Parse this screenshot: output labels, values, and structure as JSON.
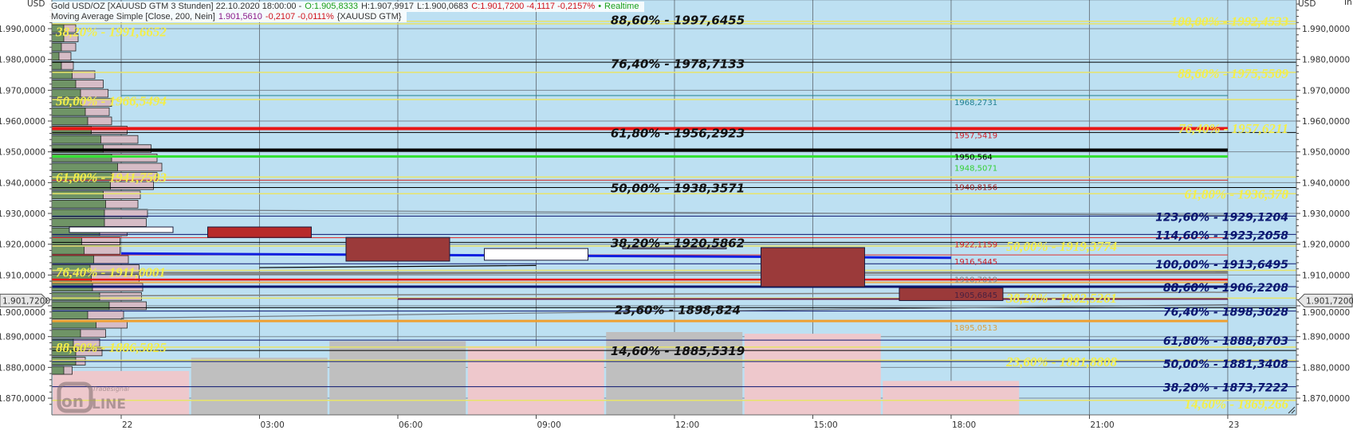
{
  "header": {
    "line1": {
      "instrument": "Gold USD/OZ [XAUUSD GTM 3 Stunden] 22.10.2020 18:00:00 -",
      "open": "O:1.905,8333",
      "high": "H:1.907,9917",
      "low": "L:1.900,0683",
      "close": "C:1.901,7200 -4,1117 -0,2157%",
      "realtime": "Realtime"
    },
    "line2": {
      "indicator": "Moving Average Simple [Close, 200, Nein]",
      "value": "1.901,5610",
      "change": "-0,2107 -0,0111%",
      "symbol": "{XAUUSD GTM}"
    }
  },
  "axis": {
    "unit_left": "USD",
    "unit_right": "USD",
    "right_corner": "In",
    "current_price": "1.901,7200",
    "y_ticks": [
      "1.990,0000",
      "1.980,0000",
      "1.970,0000",
      "1.960,0000",
      "1.950,0000",
      "1.940,0000",
      "1.930,0000",
      "1.920,0000",
      "1.910,0000",
      "1.900,0000",
      "1.890,0000",
      "1.880,0000",
      "1.870,0000"
    ],
    "x_ticks": [
      "22",
      "03:00",
      "06:00",
      "09:00",
      "12:00",
      "15:00",
      "18:00",
      "21:00",
      "23"
    ]
  },
  "logo": {
    "small": "Tradesignal",
    "big": "online"
  },
  "colors": {
    "background": "#bde0f2",
    "down_candle": "#9b3a3a",
    "down_candle_bright": "#b82a2a",
    "up_candle": "#ffffff",
    "volume_pink": "#eec8cc",
    "volume_gray": "#bfbfbf",
    "profile_green": "#6f9466",
    "profile_pink": "#d6bcc6",
    "fib_yellow": "#f3ee4a",
    "fib_navy": "#0b1670"
  },
  "chart_data": {
    "type": "candlestick",
    "interval": "3 Stunden",
    "ylim": [
      1866,
      2000
    ],
    "y_grid": true,
    "x_grid": true,
    "x_range_hours_from_22_00": [
      -1.5,
      25.5
    ],
    "candles": [
      {
        "time": "22 00:00",
        "hour": 0,
        "open": 1923.8,
        "close": 1925.6,
        "color": "#ffffff",
        "volume_rel": 0.53,
        "volume_color": "#eec8cc"
      },
      {
        "time": "03:00",
        "hour": 3,
        "open": 1925.6,
        "close": 1922.2,
        "color": "#b82a2a",
        "volume_rel": 0.69,
        "volume_color": "#bfbfbf"
      },
      {
        "time": "06:00",
        "hour": 6,
        "open": 1922.2,
        "close": 1914.5,
        "color": "#9b3a3a",
        "volume_rel": 0.89,
        "volume_color": "#bfbfbf"
      },
      {
        "time": "09:00",
        "hour": 9,
        "open": 1914.8,
        "close": 1918.6,
        "color": "#ffffff",
        "volume_rel": 0.83,
        "volume_color": "#eec8cc"
      },
      {
        "time": "12:00",
        "hour": 12,
        "open": 1918.7,
        "close": 1918.9,
        "color": "#ffffff",
        "volume_rel": 1.0,
        "volume_color": "#bfbfbf"
      },
      {
        "time": "15:00",
        "hour": 15,
        "open": 1918.9,
        "close": 1906.2,
        "color": "#9b3a3a",
        "volume_rel": 0.98,
        "volume_color": "#eec8cc"
      },
      {
        "time": "18:00",
        "hour": 18,
        "open": 1905.8,
        "close": 1901.7,
        "color": "#9b3a3a",
        "volume_rel": 0.41,
        "volume_color": "#eec8cc"
      }
    ],
    "volume_profile": [
      {
        "price": 1990,
        "up": 0.1,
        "total": 0.2
      },
      {
        "price": 1987,
        "up": 0.1,
        "total": 0.22
      },
      {
        "price": 1984,
        "up": 0.08,
        "total": 0.2
      },
      {
        "price": 1981,
        "up": 0.06,
        "total": 0.16
      },
      {
        "price": 1978,
        "up": 0.08,
        "total": 0.18
      },
      {
        "price": 1975,
        "up": 0.17,
        "total": 0.36
      },
      {
        "price": 1972,
        "up": 0.2,
        "total": 0.43
      },
      {
        "price": 1969,
        "up": 0.24,
        "total": 0.47
      },
      {
        "price": 1966,
        "up": 0.25,
        "total": 0.5
      },
      {
        "price": 1963,
        "up": 0.28,
        "total": 0.48
      },
      {
        "price": 1960,
        "up": 0.3,
        "total": 0.5
      },
      {
        "price": 1957,
        "up": 0.33,
        "total": 0.63
      },
      {
        "price": 1954,
        "up": 0.41,
        "total": 0.72
      },
      {
        "price": 1951,
        "up": 0.43,
        "total": 0.83
      },
      {
        "price": 1948,
        "up": 0.5,
        "total": 0.88
      },
      {
        "price": 1945,
        "up": 0.55,
        "total": 0.92
      },
      {
        "price": 1942,
        "up": 0.5,
        "total": 0.88
      },
      {
        "price": 1939,
        "up": 0.49,
        "total": 0.85
      },
      {
        "price": 1936,
        "up": 0.43,
        "total": 0.74
      },
      {
        "price": 1933,
        "up": 0.45,
        "total": 0.72
      },
      {
        "price": 1930,
        "up": 0.44,
        "total": 0.8
      },
      {
        "price": 1927,
        "up": 0.44,
        "total": 0.79
      },
      {
        "price": 1924,
        "up": 0.4,
        "total": 0.63
      },
      {
        "price": 1921,
        "up": 0.25,
        "total": 0.57
      },
      {
        "price": 1918,
        "up": 0.27,
        "total": 0.57
      },
      {
        "price": 1915,
        "up": 0.35,
        "total": 0.64
      },
      {
        "price": 1912,
        "up": 0.32,
        "total": 0.73
      },
      {
        "price": 1909,
        "up": 0.33,
        "total": 0.73
      },
      {
        "price": 1906,
        "up": 0.34,
        "total": 0.76
      },
      {
        "price": 1903,
        "up": 0.4,
        "total": 0.75
      },
      {
        "price": 1900,
        "up": 0.48,
        "total": 0.79
      },
      {
        "price": 1897,
        "up": 0.3,
        "total": 0.6
      },
      {
        "price": 1894,
        "up": 0.37,
        "total": 0.63
      },
      {
        "price": 1891,
        "up": 0.24,
        "total": 0.45
      },
      {
        "price": 1888,
        "up": 0.18,
        "total": 0.4
      },
      {
        "price": 1885,
        "up": 0.2,
        "total": 0.42
      },
      {
        "price": 1882,
        "up": 0.2,
        "total": 0.28
      },
      {
        "price": 1879,
        "up": 0.1,
        "total": 0.17
      }
    ],
    "lines": [
      {
        "price": 1999.4,
        "color": "#000000",
        "width": 1,
        "from": -1.5,
        "to": 25.5
      },
      {
        "price": 1992.4,
        "color": "#e8e46a",
        "width": 1.5,
        "from": -1.5,
        "to": 25.5
      },
      {
        "price": 1991.6,
        "color": "#e8e46a",
        "width": 1.5,
        "from": -1.5,
        "to": 25.5
      },
      {
        "price": 1979.1,
        "color": "#000000",
        "width": 1,
        "from": -1.5,
        "to": 25.5
      },
      {
        "price": 1975.8,
        "color": "#e8e46a",
        "width": 1.5,
        "from": -1.5,
        "to": 25.5
      },
      {
        "price": 1968.27,
        "color": "#1f7f8f",
        "width": 1,
        "from": 0,
        "to": 24
      },
      {
        "price": 1967.0,
        "color": "#e8e46a",
        "width": 1.5,
        "from": -1.5,
        "to": 25.5
      },
      {
        "price": 1957.54,
        "color": "#e81616",
        "width": 4,
        "from": -1.5,
        "to": 24
      },
      {
        "price": 1956.3,
        "color": "#000000",
        "width": 1,
        "from": -1.5,
        "to": 25.5
      },
      {
        "price": 1950.56,
        "color": "#000000",
        "width": 4,
        "from": -1.5,
        "to": 24
      },
      {
        "price": 1948.51,
        "color": "#35e035",
        "width": 3,
        "from": -1.5,
        "to": 24
      },
      {
        "price": 1941.8,
        "color": "#e8e46a",
        "width": 1.5,
        "from": -1.5,
        "to": 25.5
      },
      {
        "price": 1940.8,
        "color": "#d02020",
        "width": 1,
        "from": -1.5,
        "to": 24
      },
      {
        "price": 1938.4,
        "color": "#000000",
        "width": 1,
        "from": -1.5,
        "to": 25.5
      },
      {
        "price": 1936.4,
        "color": "#e8e46a",
        "width": 1.5,
        "from": -1.5,
        "to": 25.5
      },
      {
        "price": 1929.12,
        "color": "#0b1670",
        "width": 1,
        "from": -1.5,
        "to": 25.5
      },
      {
        "price": 1923.2,
        "color": "#0b1670",
        "width": 1,
        "from": -1.5,
        "to": 25.5
      },
      {
        "price": 1922.12,
        "color": "#e03030",
        "width": 1,
        "from": -1.5,
        "to": 24
      },
      {
        "price": 1920.6,
        "color": "#000000",
        "width": 1,
        "from": -1.5,
        "to": 25.5
      },
      {
        "price": 1919.4,
        "color": "#e8e46a",
        "width": 1.5,
        "from": -1.5,
        "to": 25.5
      },
      {
        "price": 1916.54,
        "color": "#e03030",
        "width": 1,
        "from": -1.5,
        "to": 24
      },
      {
        "price": 1913.65,
        "color": "#0b1670",
        "width": 1,
        "from": -1.5,
        "to": 25.5
      },
      {
        "price": 1911.5,
        "color": "#e8e46a",
        "width": 1.5,
        "from": -1.5,
        "to": 25.5
      },
      {
        "price": 1910.7,
        "color": "#808080",
        "width": 2.5,
        "from": -1.5,
        "to": 24
      },
      {
        "price": 1908.5,
        "color": "#e81616",
        "width": 2.5,
        "from": -1.5,
        "to": 24
      },
      {
        "price": 1907.6,
        "color": "#f0b050",
        "width": 2,
        "from": -1.5,
        "to": 24
      },
      {
        "price": 1906.2,
        "color": "#0b1670",
        "width": 3,
        "from": -1.5,
        "to": 24
      },
      {
        "price": 1906.2,
        "color": "#0b1670",
        "width": 1,
        "from": 24,
        "to": 25.5
      },
      {
        "price": 1902.5,
        "color": "#e8e46a",
        "width": 1.5,
        "from": -1.5,
        "to": 25.5
      },
      {
        "price": 1902.2,
        "color": "#6a1a4a",
        "width": 2,
        "from": 6,
        "to": 24
      },
      {
        "price": 1899.4,
        "color": "#000000",
        "width": 1,
        "from": -1.5,
        "to": 25.5
      },
      {
        "price": 1898.3,
        "color": "#0b1670",
        "width": 1,
        "from": -1.5,
        "to": 25.5
      },
      {
        "price": 1895.05,
        "color": "#f0a030",
        "width": 3,
        "from": -1.5,
        "to": 24
      },
      {
        "price": 1888.87,
        "color": "#0b1670",
        "width": 1,
        "from": -1.5,
        "to": 25.5
      },
      {
        "price": 1886.6,
        "color": "#e8e46a",
        "width": 1.5,
        "from": -1.5,
        "to": 25.5
      },
      {
        "price": 1885.5,
        "color": "#000000",
        "width": 1,
        "from": -1.5,
        "to": 25.5
      },
      {
        "price": 1882.3,
        "color": "#e8e46a",
        "width": 1.5,
        "from": -1.5,
        "to": 25.5
      },
      {
        "price": 1881.9,
        "color": "#0b1670",
        "width": 1,
        "from": -1.5,
        "to": 25.5
      },
      {
        "price": 1873.72,
        "color": "#0b1670",
        "width": 1,
        "from": -1.5,
        "to": 25.5
      },
      {
        "price": 1869.3,
        "color": "#e8e46a",
        "width": 1.5,
        "from": -1.5,
        "to": 25.5
      }
    ],
    "sloped_lines": [
      {
        "price_start": 1931.2,
        "price_end": 1929.4,
        "from": 0,
        "to": 24,
        "color": "#707880",
        "width": 1.2
      },
      {
        "price_start": 1917.0,
        "price_end": 1915.6,
        "from": 0,
        "to": 18,
        "color": "#1020e0",
        "width": 3
      },
      {
        "price_start": 1912.4,
        "price_end": 1913.1,
        "from": 3,
        "to": 9,
        "color": "#000000",
        "width": 1.2
      },
      {
        "price_start": 1910.0,
        "price_end": 1911.2,
        "from": -1.5,
        "to": 24,
        "color": "#808080",
        "width": 1.2
      },
      {
        "price_start": 1903.2,
        "price_end": 1904.4,
        "from": -1.5,
        "to": 24,
        "color": "#808080",
        "width": 1.5
      },
      {
        "price_start": 1896.0,
        "price_end": 1900.4,
        "from": 0,
        "to": 24,
        "color": "#707880",
        "width": 1.2
      }
    ],
    "fib_labels_left": [
      {
        "text": "38,20% - 1991,6652",
        "price": 1991.66
      },
      {
        "text": "50,00% - 1966,5494",
        "price": 1966.55
      },
      {
        "text": "61,80% - 1941,7503",
        "price": 1941.75
      },
      {
        "text": "76,40% - 1911,0001",
        "price": 1911.0
      },
      {
        "text": "88,60% - 1886,5825",
        "price": 1886.58
      }
    ],
    "fib_labels_center": [
      {
        "text": "88,60% - 1997,6455",
        "price": 1997.65
      },
      {
        "text": "76,40% - 1978,7133",
        "price": 1978.71
      },
      {
        "text": "61,80% - 1956,2923",
        "price": 1956.29
      },
      {
        "text": "50,00% - 1938,3571",
        "price": 1938.36
      },
      {
        "text": "38,20% - 1920,5862",
        "price": 1920.59
      },
      {
        "text": "23,60% - 1898,824",
        "price": 1898.82
      },
      {
        "text": "14,60% - 1885,5319",
        "price": 1885.53
      }
    ],
    "fib_labels_right_yellow": [
      {
        "text": "100,00% - 1992,4533",
        "price": 1992.45
      },
      {
        "text": "88,60% - 1975,5509",
        "price": 1975.55
      },
      {
        "text": "76,40% - 1957,6211",
        "price": 1957.62
      },
      {
        "text": "61,80% - 1936,378",
        "price": 1936.38
      },
      {
        "text": "50,00% - 1919,3774",
        "price": 1919.38
      },
      {
        "text": "38,20% - 1902,5261",
        "price": 1902.53
      },
      {
        "text": "23,60% - 1881,8808",
        "price": 1881.88
      },
      {
        "text": "14,60% - 1869,266",
        "price": 1869.27
      }
    ],
    "fib_labels_right_navy": [
      {
        "text": "123,60% - 1929,1204",
        "price": 1929.12
      },
      {
        "text": "114,60% - 1923,2058",
        "price": 1923.21
      },
      {
        "text": "100,00% - 1913,6495",
        "price": 1913.65
      },
      {
        "text": "88,60% - 1906,2208",
        "price": 1906.22
      },
      {
        "text": "76,40% - 1898,3028",
        "price": 1898.3
      },
      {
        "text": "61,80% - 1888,8703",
        "price": 1888.87
      },
      {
        "text": "50,00% - 1881,3408",
        "price": 1881.34
      },
      {
        "text": "38,20% - 1873,7222",
        "price": 1873.72
      }
    ],
    "price_labels": [
      {
        "text": "1968,2731",
        "price": 1968.27,
        "color": "#1f7f8f"
      },
      {
        "text": "1957,5419",
        "price": 1957.54,
        "color": "#d0202a"
      },
      {
        "text": "1950,564",
        "price": 1950.56,
        "color": "#000000"
      },
      {
        "text": "1948,5071",
        "price": 1948.51,
        "color": "#35d035"
      },
      {
        "text": "1940,8156",
        "price": 1940.8,
        "color": "#a02020"
      },
      {
        "text": "1922,1159",
        "price": 1922.12,
        "color": "#d0202a"
      },
      {
        "text": "1916,5445",
        "price": 1916.54,
        "color": "#d0202a"
      },
      {
        "text": "1910,7019",
        "price": 1910.7,
        "color": "#808080"
      },
      {
        "text": "1905,6845",
        "price": 1905.68,
        "color": "#4a2040"
      },
      {
        "text": "1895,0513",
        "price": 1895.05,
        "color": "#d8a040"
      }
    ]
  }
}
